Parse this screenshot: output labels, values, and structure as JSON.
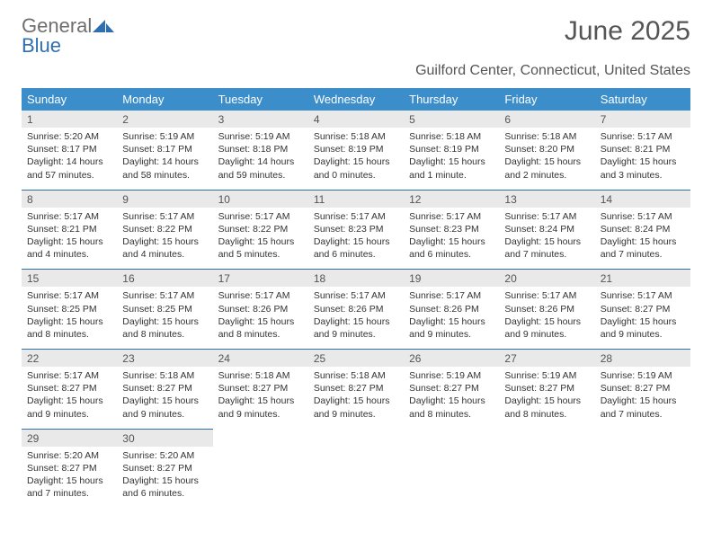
{
  "logo": {
    "word1": "General",
    "word2": "Blue"
  },
  "title": "June 2025",
  "subtitle": "Guilford Center, Connecticut, United States",
  "colors": {
    "header_bg": "#3c8ecb",
    "header_text": "#ffffff",
    "daynum_bg": "#e9e9e9",
    "daynum_border": "#2f6fb0",
    "title_color": "#555555",
    "text_color": "#333333",
    "logo_general": "#6f6f6f",
    "logo_blue": "#2f6fb0"
  },
  "daysOfWeek": [
    "Sunday",
    "Monday",
    "Tuesday",
    "Wednesday",
    "Thursday",
    "Friday",
    "Saturday"
  ],
  "weeks": [
    [
      {
        "num": "1",
        "sunrise": "Sunrise: 5:20 AM",
        "sunset": "Sunset: 8:17 PM",
        "daylight1": "Daylight: 14 hours",
        "daylight2": "and 57 minutes."
      },
      {
        "num": "2",
        "sunrise": "Sunrise: 5:19 AM",
        "sunset": "Sunset: 8:17 PM",
        "daylight1": "Daylight: 14 hours",
        "daylight2": "and 58 minutes."
      },
      {
        "num": "3",
        "sunrise": "Sunrise: 5:19 AM",
        "sunset": "Sunset: 8:18 PM",
        "daylight1": "Daylight: 14 hours",
        "daylight2": "and 59 minutes."
      },
      {
        "num": "4",
        "sunrise": "Sunrise: 5:18 AM",
        "sunset": "Sunset: 8:19 PM",
        "daylight1": "Daylight: 15 hours",
        "daylight2": "and 0 minutes."
      },
      {
        "num": "5",
        "sunrise": "Sunrise: 5:18 AM",
        "sunset": "Sunset: 8:19 PM",
        "daylight1": "Daylight: 15 hours",
        "daylight2": "and 1 minute."
      },
      {
        "num": "6",
        "sunrise": "Sunrise: 5:18 AM",
        "sunset": "Sunset: 8:20 PM",
        "daylight1": "Daylight: 15 hours",
        "daylight2": "and 2 minutes."
      },
      {
        "num": "7",
        "sunrise": "Sunrise: 5:17 AM",
        "sunset": "Sunset: 8:21 PM",
        "daylight1": "Daylight: 15 hours",
        "daylight2": "and 3 minutes."
      }
    ],
    [
      {
        "num": "8",
        "sunrise": "Sunrise: 5:17 AM",
        "sunset": "Sunset: 8:21 PM",
        "daylight1": "Daylight: 15 hours",
        "daylight2": "and 4 minutes."
      },
      {
        "num": "9",
        "sunrise": "Sunrise: 5:17 AM",
        "sunset": "Sunset: 8:22 PM",
        "daylight1": "Daylight: 15 hours",
        "daylight2": "and 4 minutes."
      },
      {
        "num": "10",
        "sunrise": "Sunrise: 5:17 AM",
        "sunset": "Sunset: 8:22 PM",
        "daylight1": "Daylight: 15 hours",
        "daylight2": "and 5 minutes."
      },
      {
        "num": "11",
        "sunrise": "Sunrise: 5:17 AM",
        "sunset": "Sunset: 8:23 PM",
        "daylight1": "Daylight: 15 hours",
        "daylight2": "and 6 minutes."
      },
      {
        "num": "12",
        "sunrise": "Sunrise: 5:17 AM",
        "sunset": "Sunset: 8:23 PM",
        "daylight1": "Daylight: 15 hours",
        "daylight2": "and 6 minutes."
      },
      {
        "num": "13",
        "sunrise": "Sunrise: 5:17 AM",
        "sunset": "Sunset: 8:24 PM",
        "daylight1": "Daylight: 15 hours",
        "daylight2": "and 7 minutes."
      },
      {
        "num": "14",
        "sunrise": "Sunrise: 5:17 AM",
        "sunset": "Sunset: 8:24 PM",
        "daylight1": "Daylight: 15 hours",
        "daylight2": "and 7 minutes."
      }
    ],
    [
      {
        "num": "15",
        "sunrise": "Sunrise: 5:17 AM",
        "sunset": "Sunset: 8:25 PM",
        "daylight1": "Daylight: 15 hours",
        "daylight2": "and 8 minutes."
      },
      {
        "num": "16",
        "sunrise": "Sunrise: 5:17 AM",
        "sunset": "Sunset: 8:25 PM",
        "daylight1": "Daylight: 15 hours",
        "daylight2": "and 8 minutes."
      },
      {
        "num": "17",
        "sunrise": "Sunrise: 5:17 AM",
        "sunset": "Sunset: 8:26 PM",
        "daylight1": "Daylight: 15 hours",
        "daylight2": "and 8 minutes."
      },
      {
        "num": "18",
        "sunrise": "Sunrise: 5:17 AM",
        "sunset": "Sunset: 8:26 PM",
        "daylight1": "Daylight: 15 hours",
        "daylight2": "and 9 minutes."
      },
      {
        "num": "19",
        "sunrise": "Sunrise: 5:17 AM",
        "sunset": "Sunset: 8:26 PM",
        "daylight1": "Daylight: 15 hours",
        "daylight2": "and 9 minutes."
      },
      {
        "num": "20",
        "sunrise": "Sunrise: 5:17 AM",
        "sunset": "Sunset: 8:26 PM",
        "daylight1": "Daylight: 15 hours",
        "daylight2": "and 9 minutes."
      },
      {
        "num": "21",
        "sunrise": "Sunrise: 5:17 AM",
        "sunset": "Sunset: 8:27 PM",
        "daylight1": "Daylight: 15 hours",
        "daylight2": "and 9 minutes."
      }
    ],
    [
      {
        "num": "22",
        "sunrise": "Sunrise: 5:17 AM",
        "sunset": "Sunset: 8:27 PM",
        "daylight1": "Daylight: 15 hours",
        "daylight2": "and 9 minutes."
      },
      {
        "num": "23",
        "sunrise": "Sunrise: 5:18 AM",
        "sunset": "Sunset: 8:27 PM",
        "daylight1": "Daylight: 15 hours",
        "daylight2": "and 9 minutes."
      },
      {
        "num": "24",
        "sunrise": "Sunrise: 5:18 AM",
        "sunset": "Sunset: 8:27 PM",
        "daylight1": "Daylight: 15 hours",
        "daylight2": "and 9 minutes."
      },
      {
        "num": "25",
        "sunrise": "Sunrise: 5:18 AM",
        "sunset": "Sunset: 8:27 PM",
        "daylight1": "Daylight: 15 hours",
        "daylight2": "and 9 minutes."
      },
      {
        "num": "26",
        "sunrise": "Sunrise: 5:19 AM",
        "sunset": "Sunset: 8:27 PM",
        "daylight1": "Daylight: 15 hours",
        "daylight2": "and 8 minutes."
      },
      {
        "num": "27",
        "sunrise": "Sunrise: 5:19 AM",
        "sunset": "Sunset: 8:27 PM",
        "daylight1": "Daylight: 15 hours",
        "daylight2": "and 8 minutes."
      },
      {
        "num": "28",
        "sunrise": "Sunrise: 5:19 AM",
        "sunset": "Sunset: 8:27 PM",
        "daylight1": "Daylight: 15 hours",
        "daylight2": "and 7 minutes."
      }
    ],
    [
      {
        "num": "29",
        "sunrise": "Sunrise: 5:20 AM",
        "sunset": "Sunset: 8:27 PM",
        "daylight1": "Daylight: 15 hours",
        "daylight2": "and 7 minutes."
      },
      {
        "num": "30",
        "sunrise": "Sunrise: 5:20 AM",
        "sunset": "Sunset: 8:27 PM",
        "daylight1": "Daylight: 15 hours",
        "daylight2": "and 6 minutes."
      },
      {
        "empty": true
      },
      {
        "empty": true
      },
      {
        "empty": true
      },
      {
        "empty": true
      },
      {
        "empty": true
      }
    ]
  ]
}
